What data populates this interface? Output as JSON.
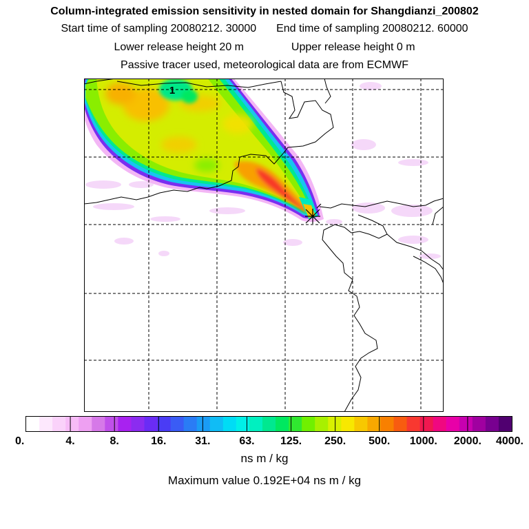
{
  "header": {
    "title": "Column-integrated emission sensitivity in nested domain for Shangdianzi_200802",
    "start_label": "Start time of sampling 20080212. 30000",
    "end_label": "End time of sampling 20080212. 60000",
    "lower_label": "Lower release height   20 m",
    "upper_label": "Upper release height    0 m",
    "tracer_note": "Passive tracer used, meteorological data are from ECMWF"
  },
  "chart_data": {
    "type": "heatmap",
    "title": "Column-integrated emission sensitivity in nested domain for Shangdianzi_200802",
    "contour_label": "1",
    "colorbar": {
      "unit": "ns m / kg",
      "tick_labels": [
        "0.",
        "4.",
        "8.",
        "16.",
        "31.",
        "63.",
        "125.",
        "250.",
        "500.",
        "1000.",
        "2000.",
        "4000."
      ],
      "colors": [
        "#ffffff",
        "#fde8fd",
        "#fad2fa",
        "#f7bcf7",
        "#eea0f2",
        "#d679e8",
        "#c050ea",
        "#a822f0",
        "#8b2cf0",
        "#6a2cf5",
        "#4a3cf5",
        "#3a5cf5",
        "#2a7cf5",
        "#1a9cf5",
        "#10bcf5",
        "#00dcf5",
        "#00f0e8",
        "#00f0c0",
        "#00e890",
        "#00e860",
        "#30e830",
        "#70f000",
        "#a8f000",
        "#d8f000",
        "#f8e800",
        "#f8c800",
        "#f8a800",
        "#f88000",
        "#f85c10",
        "#f83830",
        "#f01850",
        "#f00880",
        "#e800a8",
        "#c800b0",
        "#a000a0",
        "#780090",
        "#500070"
      ]
    },
    "maximum": {
      "value": 1920,
      "text": "Maximum value  0.192E+04 ns m / kg"
    },
    "receptor": "Shangdianzi"
  }
}
